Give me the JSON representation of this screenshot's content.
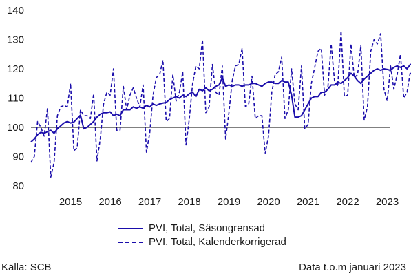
{
  "colors": {
    "series": "#1a0dab",
    "axis": "#000000",
    "text": "#1a1a1a"
  },
  "footer": {
    "source": "Källa: SCB",
    "note": "Data t.o.m januari 2023"
  },
  "chart_data": {
    "type": "line",
    "title": "",
    "xlabel": "",
    "ylabel": "",
    "ylim": [
      80,
      140
    ],
    "y_ticks": [
      80,
      90,
      100,
      110,
      120,
      130,
      140
    ],
    "reference_line": 100,
    "grid": false,
    "legend_position": "bottom",
    "x_tick_labels": [
      "2015",
      "2016",
      "2017",
      "2018",
      "2019",
      "2020",
      "2021",
      "2022",
      "2023"
    ],
    "x_start": "2014-07",
    "series": [
      {
        "name": "PVI, Total, Säsongrensad",
        "style": "solid",
        "values": [
          95.0,
          96.0,
          97.5,
          98.3,
          98.0,
          98.5,
          99.0,
          98.0,
          99.5,
          100.5,
          101.5,
          102.0,
          101.5,
          101.8,
          103.0,
          104.2,
          99.5,
          100.0,
          101.0,
          102.0,
          103.5,
          104.5,
          105.0,
          105.0,
          105.3,
          104.0,
          104.5,
          104.0,
          106.0,
          106.0,
          106.0,
          107.0,
          106.5,
          107.0,
          106.5,
          107.5,
          107.0,
          108.0,
          107.5,
          108.0,
          108.3,
          108.5,
          109.5,
          110.0,
          110.5,
          110.0,
          111.0,
          110.5,
          111.5,
          112.0,
          110.5,
          113.0,
          112.5,
          113.5,
          112.5,
          113.0,
          114.0,
          114.5,
          117.0,
          114.0,
          114.5,
          114.0,
          114.5,
          114.5,
          114.0,
          114.5,
          114.5,
          115.0,
          115.0,
          114.5,
          114.0,
          115.0,
          115.5,
          115.5,
          115.0,
          115.0,
          116.0,
          115.5,
          115.5,
          111.0,
          103.5,
          103.5,
          104.0,
          106.0,
          108.0,
          110.0,
          110.5,
          110.5,
          112.0,
          112.0,
          113.0,
          114.5,
          114.5,
          115.5,
          115.0,
          116.0,
          117.0,
          118.5,
          117.5,
          116.0,
          115.0,
          116.5,
          117.5,
          118.5,
          119.5,
          120.0,
          119.5,
          120.0,
          119.8,
          119.5,
          120.5,
          121.0,
          120.5,
          121.0,
          120.0,
          121.5,
          121.5,
          121.0,
          120.0,
          119.5,
          122.0
        ]
      },
      {
        "name": "PVI, Total, Kalenderkorrigerad",
        "style": "dashed",
        "values": [
          88.0,
          90.0,
          102.0,
          100.0,
          97.0,
          106.5,
          83.0,
          88.0,
          104.0,
          107.0,
          107.5,
          107.0,
          115.0,
          92.0,
          93.0,
          106.0,
          104.0,
          104.0,
          103.0,
          111.5,
          88.5,
          96.0,
          108.0,
          112.0,
          111.0,
          120.0,
          99.0,
          99.0,
          114.0,
          106.0,
          111.0,
          113.5,
          110.0,
          107.0,
          114.5,
          91.5,
          98.0,
          111.0,
          117.0,
          118.0,
          123.0,
          102.0,
          103.0,
          118.0,
          109.0,
          112.0,
          119.0,
          94.0,
          103.0,
          115.0,
          121.0,
          120.0,
          130.0,
          105.0,
          107.0,
          121.5,
          112.0,
          111.0,
          121.0,
          96.0,
          105.0,
          116.0,
          121.0,
          121.5,
          127.0,
          107.0,
          108.0,
          117.5,
          103.0,
          104.0,
          104.0,
          91.0,
          97.0,
          112.0,
          118.0,
          119.0,
          124.0,
          103.0,
          106.0,
          120.0,
          108.0,
          106.0,
          121.0,
          99.5,
          101.0,
          115.0,
          120.5,
          126.0,
          127.0,
          111.0,
          113.5,
          128.5,
          116.0,
          114.0,
          133.0,
          110.5,
          111.0,
          128.5,
          117.0,
          118.0,
          128.0,
          102.5,
          107.0,
          126.0,
          130.0,
          128.5,
          132.0,
          113.0,
          109.0,
          121.0,
          113.0,
          118.0,
          125.0,
          110.0,
          112.0,
          119.0,
          117.0,
          116.0,
          121.0,
          113.0,
          113.0
        ]
      }
    ]
  }
}
